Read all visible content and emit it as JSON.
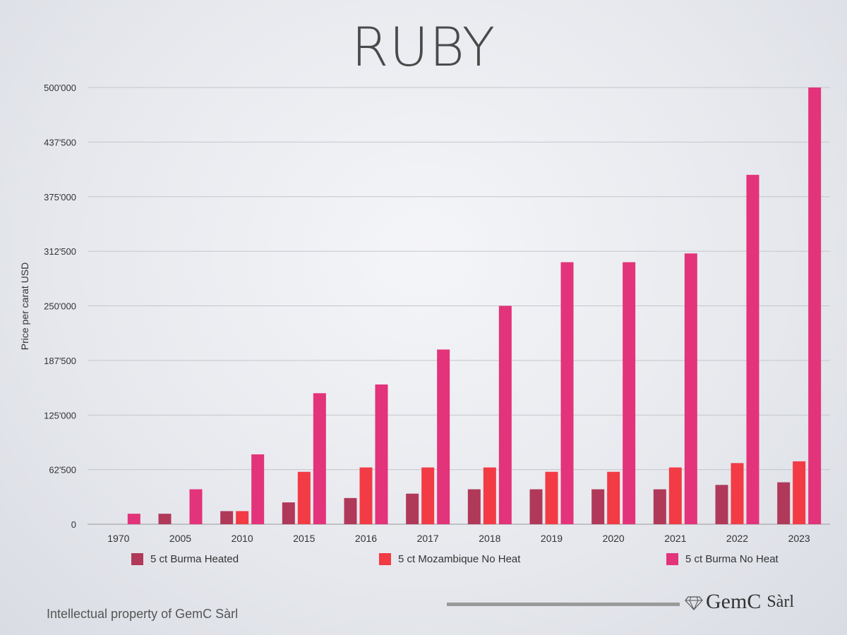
{
  "title": "RUBY",
  "footer": {
    "copyright": "Intellectual property of GemC Sàrl",
    "logo_name": "GemC",
    "logo_suffix": "Sàrl"
  },
  "chart_data": {
    "type": "bar",
    "title": "RUBY",
    "xlabel": "",
    "ylabel": "Price per carat USD",
    "ylim": [
      0,
      500000
    ],
    "yticks": [
      0,
      62500,
      125000,
      187500,
      250000,
      312500,
      375000,
      437500,
      500000
    ],
    "ytick_labels": [
      "0",
      "62'500",
      "125'000",
      "187'500",
      "250'000",
      "312'500",
      "375'000",
      "437'500",
      "500'000"
    ],
    "grid": true,
    "legend_position": "bottom",
    "categories": [
      "1970",
      "2005",
      "2010",
      "2015",
      "2016",
      "2017",
      "2018",
      "2019",
      "2020",
      "2021",
      "2022",
      "2023"
    ],
    "series": [
      {
        "name": "5 ct Burma Heated",
        "color": "#b0395a",
        "values": [
          0,
          12000,
          15000,
          25000,
          30000,
          35000,
          40000,
          40000,
          40000,
          40000,
          45000,
          48000
        ]
      },
      {
        "name": "5 ct Mozambique No Heat",
        "color": "#f23b45",
        "values": [
          0,
          0,
          15000,
          60000,
          65000,
          65000,
          65000,
          60000,
          60000,
          65000,
          70000,
          72000
        ]
      },
      {
        "name": "5 ct Burma No Heat",
        "color": "#e3337a",
        "values": [
          12000,
          40000,
          80000,
          150000,
          160000,
          200000,
          250000,
          300000,
          300000,
          310000,
          400000,
          500000
        ]
      }
    ]
  }
}
